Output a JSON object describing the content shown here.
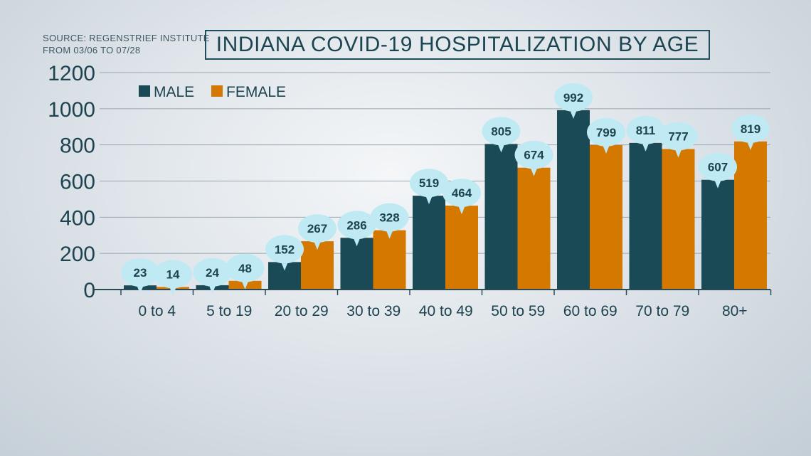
{
  "source": {
    "line1": "SOURCE: REGENSTRIEF INSTITUTE",
    "line2": "FROM 03/06 TO 07/28"
  },
  "chart_data": {
    "type": "bar",
    "title": "INDIANA COVID-19 HOSPITALIZATION BY AGE",
    "categories": [
      "0 to 4",
      "5 to 19",
      "20 to 29",
      "30 to 39",
      "40 to 49",
      "50 to 59",
      "60 to 69",
      "70 to 79",
      "80+"
    ],
    "series": [
      {
        "name": "MALE",
        "color": "#1b4a57",
        "values": [
          23,
          24,
          152,
          286,
          519,
          805,
          992,
          811,
          607
        ]
      },
      {
        "name": "FEMALE",
        "color": "#d47800",
        "values": [
          14,
          48,
          267,
          328,
          464,
          674,
          799,
          777,
          819
        ]
      }
    ],
    "y_ticks": [
      "0",
      "200",
      "400",
      "600",
      "800",
      "1000",
      "1200"
    ],
    "ylim": [
      0,
      1200
    ],
    "grid": true,
    "legend_position": "top-left",
    "data_labels": true,
    "label_bubble_color": "#bfeaf4"
  }
}
